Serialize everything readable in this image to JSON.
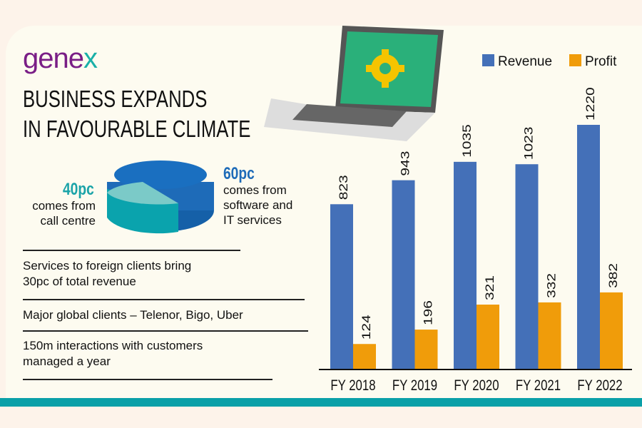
{
  "logo": {
    "text_main": "gene",
    "text_accent": "x"
  },
  "title": {
    "line1": "BUSINESS EXPANDS",
    "line2": "IN FAVOURABLE CLIMATE"
  },
  "pie": {
    "left": {
      "pct": "40pc",
      "line1": "comes from",
      "line2": "call centre",
      "value": 40,
      "color": "#2ab3b0"
    },
    "right": {
      "pct": "60pc",
      "line1": "comes from",
      "line2": "software and",
      "line3": "IT services",
      "value": 60,
      "color": "#1e6bb8"
    }
  },
  "facts": [
    {
      "line1": "Services to foreign clients bring",
      "line2": "30pc of total revenue"
    },
    {
      "line1": "Major global clients – Telenor, Bigo, Uber",
      "line2": ""
    },
    {
      "line1": "150m interactions with customers",
      "line2": "managed a year"
    }
  ],
  "chart_data": {
    "type": "bar",
    "categories": [
      "FY 2018",
      "FY 2019",
      "FY 2020",
      "FY 2021",
      "FY 2022"
    ],
    "series": [
      {
        "name": "Revenue",
        "values": [
          823,
          943,
          1035,
          1023,
          1220
        ],
        "color": "#4470b8"
      },
      {
        "name": "Profit",
        "values": [
          124,
          196,
          321,
          332,
          382
        ],
        "color": "#f09c0a"
      }
    ],
    "legend": "top-right",
    "ylim": [
      0,
      1220
    ],
    "grid": false
  }
}
